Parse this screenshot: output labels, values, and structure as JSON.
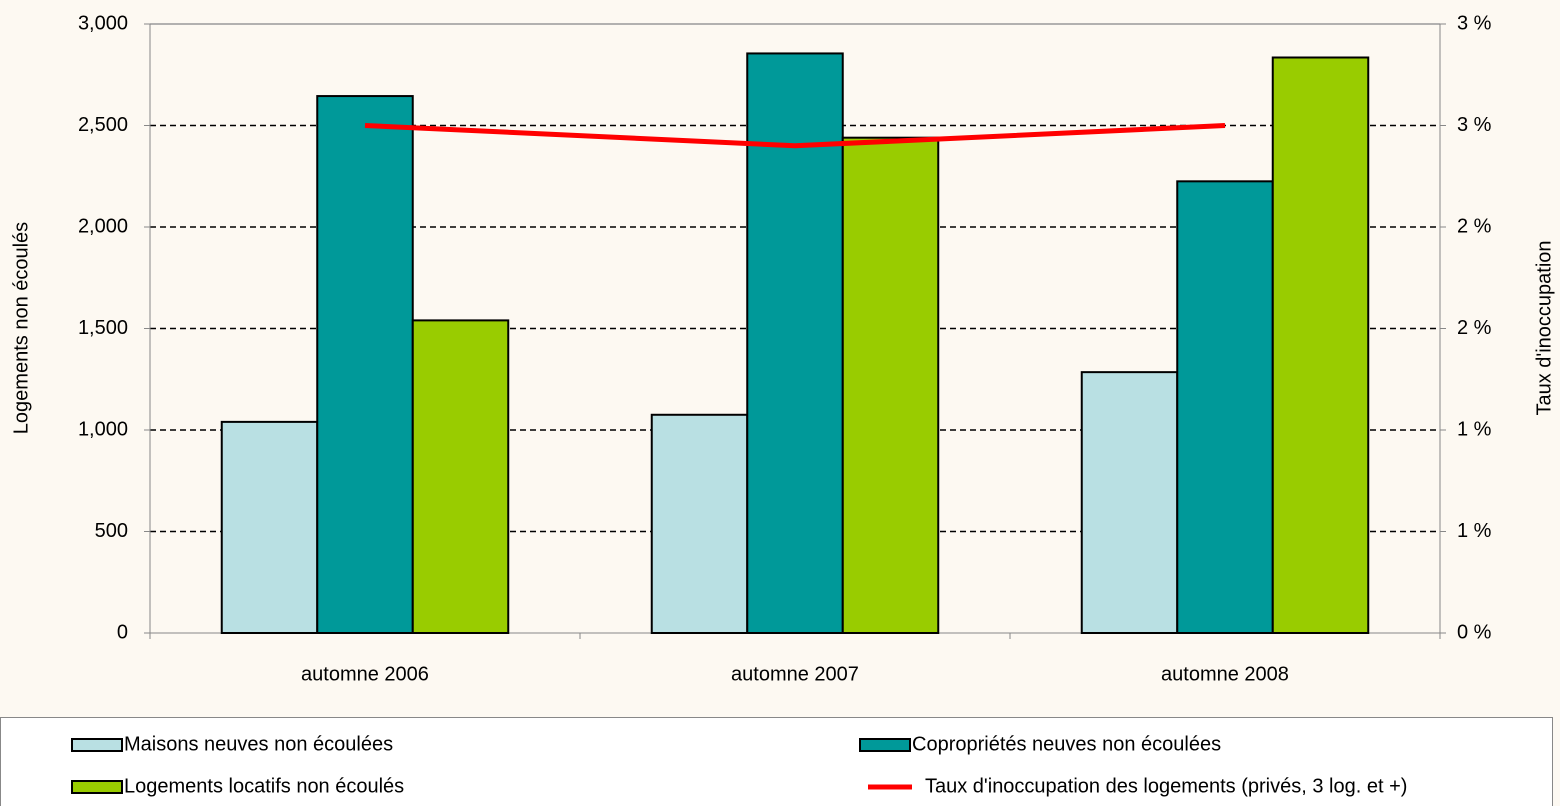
{
  "chart_data": {
    "type": "bar",
    "categories": [
      "automne 2006",
      "automne 2007",
      "automne 2008"
    ],
    "y_label": "Logements non écoulés",
    "y2_label": "Taux d'inoccupation",
    "ylim": [
      0,
      3000
    ],
    "yticks": [
      0,
      {
        "value": 500,
        "label": "500"
      },
      {
        "value": 1000,
        "label": "1,000"
      },
      {
        "value": 1500,
        "label": "1,500"
      },
      {
        "value": 2000,
        "label": "2,000"
      },
      {
        "value": 2500,
        "label": "2,500"
      },
      {
        "value": 3000,
        "label": "3,000"
      }
    ],
    "y2lim": [
      0,
      3
    ],
    "y2ticks": [
      {
        "value": 0,
        "label": "0 %"
      },
      {
        "value": 0.5,
        "label": "1 %"
      },
      {
        "value": 1,
        "label": "1 %"
      },
      {
        "value": 1.5,
        "label": "2 %"
      },
      {
        "value": 2,
        "label": "2 %"
      },
      {
        "value": 2.5,
        "label": "3 %"
      },
      {
        "value": 3,
        "label": "3 %"
      }
    ],
    "grid": true,
    "legend": "bottom",
    "series": [
      {
        "name": "Maisons neuves non écoulées",
        "color": "#b9e0e3",
        "type": "bar",
        "values": [
          1040,
          1075,
          1285
        ]
      },
      {
        "name": "Copropriétés neuves non écoulées",
        "color": "#009999",
        "type": "bar",
        "values": [
          2645,
          2855,
          2225
        ]
      },
      {
        "name": "Logements locatifs non écoulés",
        "color": "#99cc00",
        "type": "bar",
        "values": [
          1540,
          2440,
          2835
        ]
      },
      {
        "name": "Taux d'inoccupation des logements (privés, 3 log. et +)",
        "color": "#ff0000",
        "type": "line",
        "axis": "y2",
        "values": [
          2.5,
          2.4,
          2.5
        ]
      }
    ]
  }
}
